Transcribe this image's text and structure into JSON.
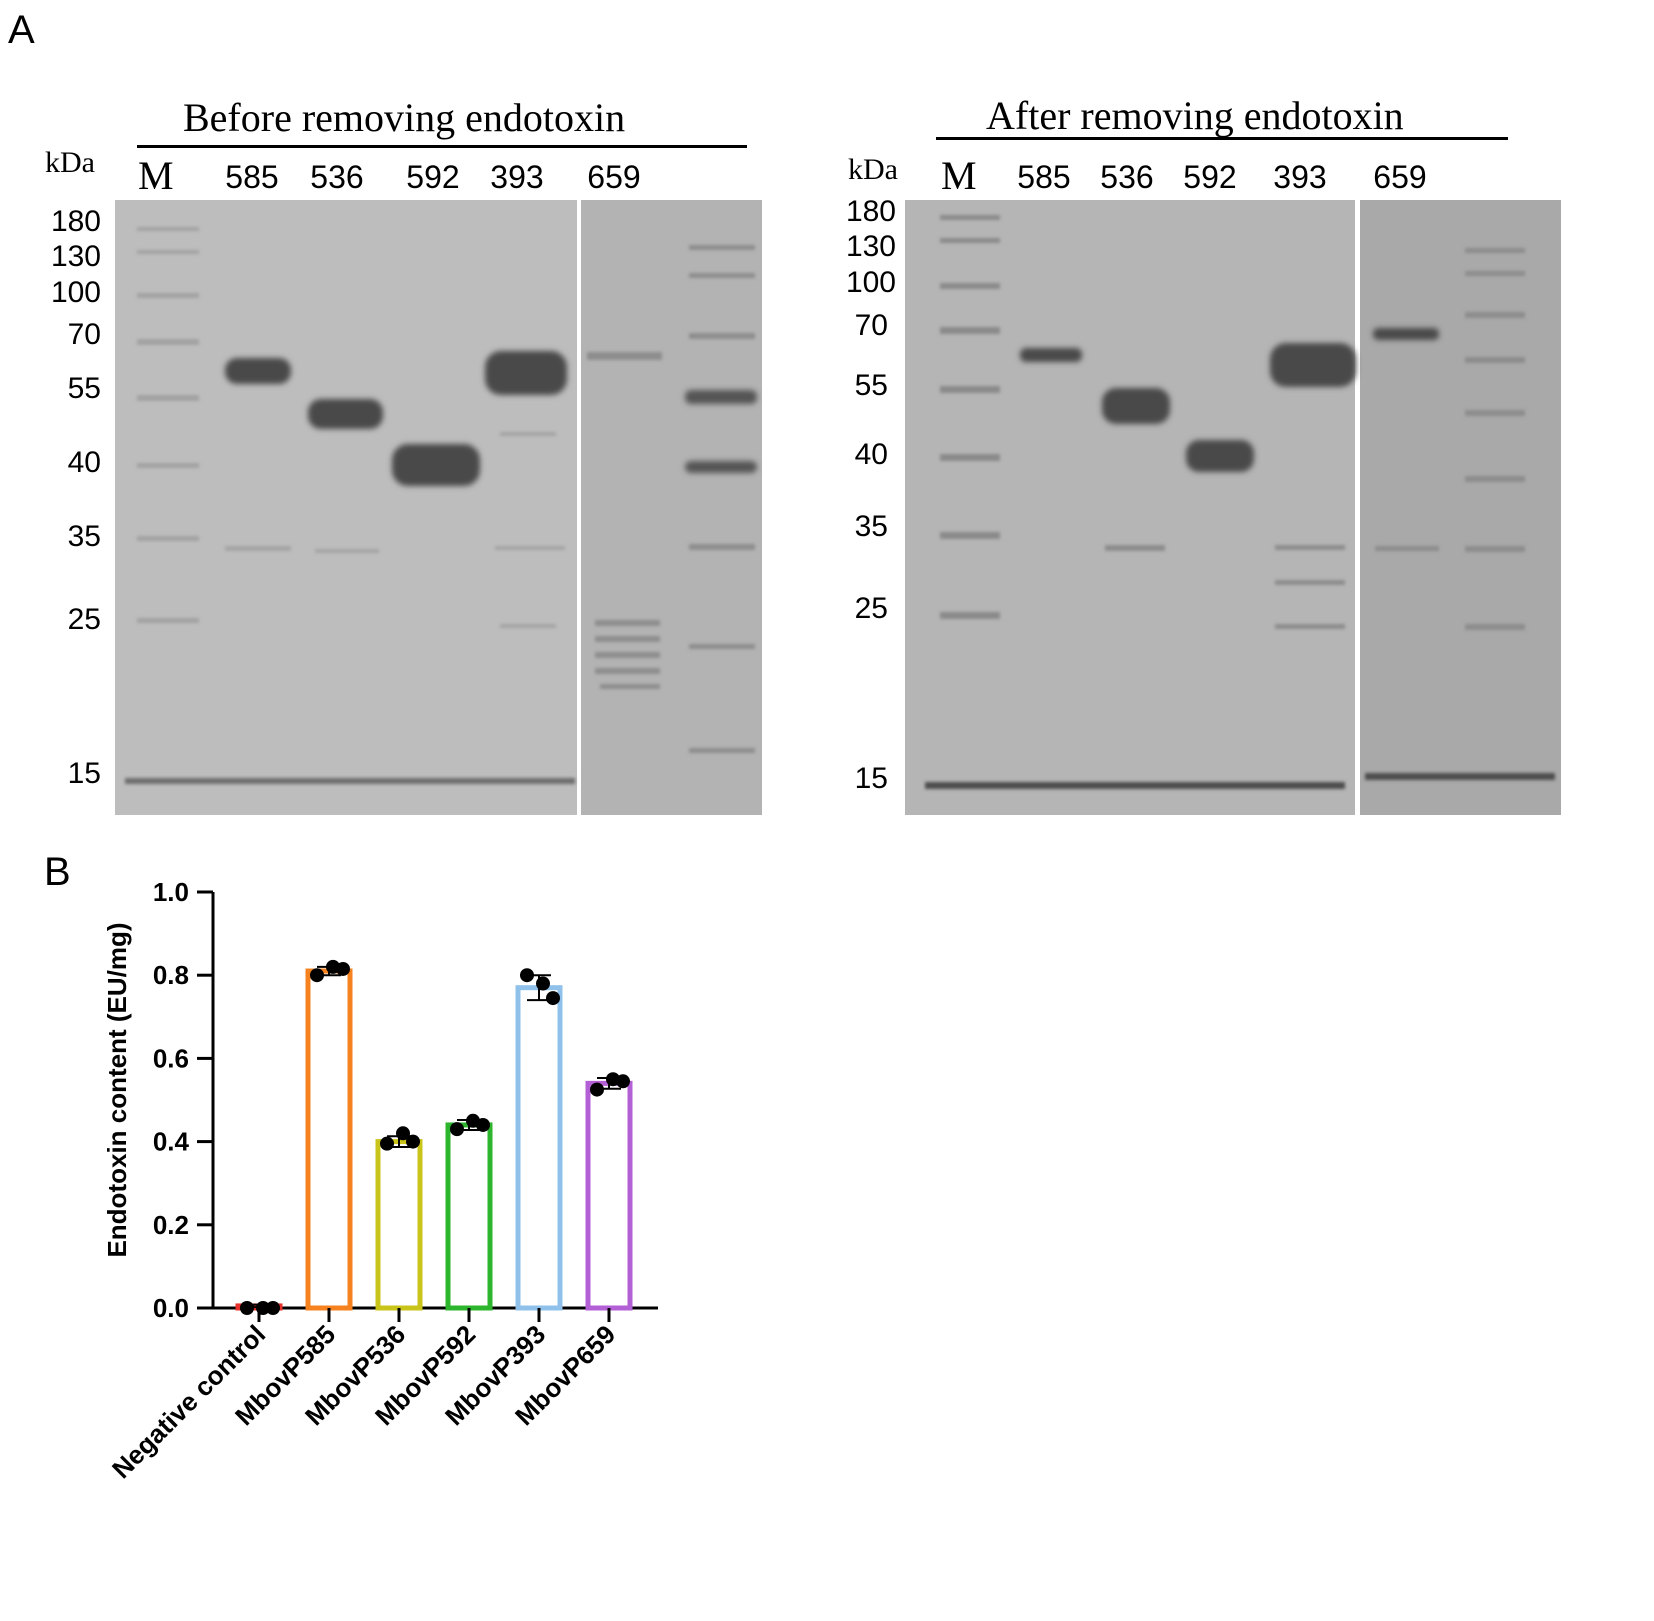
{
  "panels": {
    "a_label": "A",
    "b_label": "B"
  },
  "gels": [
    {
      "title": "Before removing endotoxin",
      "unit": "kDa",
      "marker_label": "M",
      "lanes": [
        "585",
        "536",
        "592",
        "393",
        "659"
      ],
      "mw_labels": [
        "180",
        "130",
        "100",
        "70",
        "55",
        "40",
        "35",
        "25",
        "15"
      ]
    },
    {
      "title": "After removing endotoxin",
      "unit": "kDa",
      "marker_label": "M",
      "lanes": [
        "585",
        "536",
        "592",
        "393",
        "659"
      ],
      "mw_labels": [
        "180",
        "130",
        "100",
        "70",
        "55",
        "40",
        "35",
        "25",
        "15"
      ]
    }
  ],
  "chart_data": {
    "type": "bar",
    "title": "",
    "xlabel": "",
    "ylabel": "Endotoxin content (EU/mg)",
    "ylim": [
      0,
      1.0
    ],
    "yticks": [
      "0.0",
      "0.2",
      "0.4",
      "0.6",
      "0.8",
      "1.0"
    ],
    "categories": [
      "Negative control",
      "MbovP585",
      "MbovP536",
      "MbovP592",
      "MbovP393",
      "MbovP659"
    ],
    "values": [
      0.005,
      0.81,
      0.4,
      0.44,
      0.77,
      0.54
    ],
    "errors": [
      0.003,
      0.01,
      0.013,
      0.012,
      0.03,
      0.013
    ],
    "points": [
      [
        0.0,
        0.0,
        0.0
      ],
      [
        0.8,
        0.82,
        0.815
      ],
      [
        0.395,
        0.42,
        0.4
      ],
      [
        0.43,
        0.45,
        0.44
      ],
      [
        0.8,
        0.78,
        0.745
      ],
      [
        0.525,
        0.55,
        0.545
      ]
    ],
    "colors": [
      "#e8312a",
      "#f5821f",
      "#c8c41a",
      "#2db52d",
      "#8fc1ea",
      "#b35fd6"
    ],
    "grid": false,
    "legend": "none"
  }
}
